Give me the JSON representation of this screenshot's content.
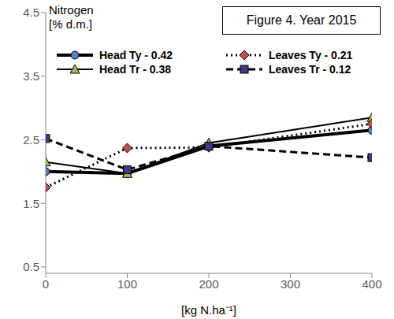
{
  "chart_data": {
    "type": "line",
    "title": "Figure 4. Year 2015",
    "x_label": "[kg N.ha⁻¹]",
    "y_label": [
      "Nitrogen",
      "[% d.m.]"
    ],
    "x": [
      0,
      100,
      200,
      400
    ],
    "xlim": [
      0,
      400
    ],
    "xticks": [
      0,
      100,
      200,
      300,
      400
    ],
    "ylim": [
      0.4,
      4.5
    ],
    "yticks": [
      0.5,
      1.5,
      2.5,
      3.5,
      4.5
    ],
    "grid": false,
    "legend": "top",
    "series": [
      {
        "name": "Head Ty - 0.42",
        "color": "#4f81bd",
        "marker": "circle",
        "line_style": "solid",
        "values": [
          2.0,
          1.97,
          2.4,
          2.65
        ]
      },
      {
        "name": "Head Tr - 0.38",
        "color": "#9bbb59",
        "marker": "triangle",
        "line_style": "solid",
        "values": [
          2.15,
          1.97,
          2.45,
          2.85
        ]
      },
      {
        "name": "Leaves Ty - 0.21",
        "color": "#c0504d",
        "marker": "diamond",
        "line_style": "dotted",
        "values": [
          1.75,
          2.37,
          2.38,
          2.75
        ]
      },
      {
        "name": "Leaves Tr - 0.12",
        "color": "#403880",
        "marker": "square",
        "line_style": "dashed",
        "values": [
          2.52,
          2.03,
          2.4,
          2.22
        ]
      }
    ]
  }
}
